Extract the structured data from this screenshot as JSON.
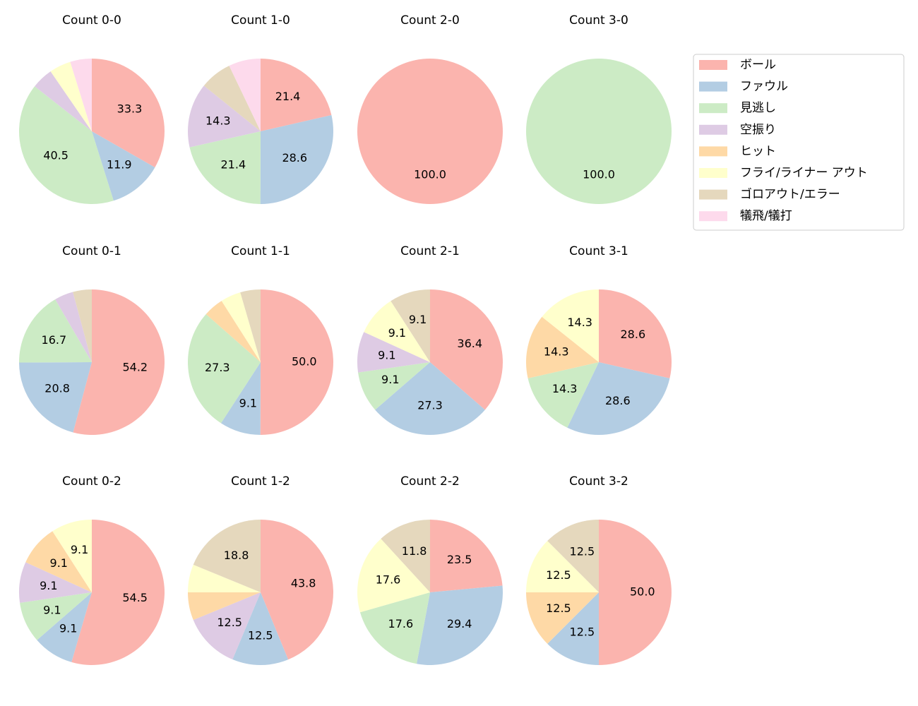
{
  "chart_data": [
    {
      "type": "pie",
      "title": "Count 0-0",
      "values": [
        33.3,
        11.9,
        40.5,
        4.8,
        null,
        4.8,
        null,
        4.8
      ],
      "value_labels": [
        "33.3",
        "11.9",
        "40.5",
        null,
        null,
        null,
        null,
        null
      ]
    },
    {
      "type": "pie",
      "title": "Count 1-0",
      "values": [
        21.4,
        28.6,
        21.4,
        14.3,
        null,
        null,
        7.1,
        7.1
      ],
      "value_labels": [
        "21.4",
        "28.6",
        "21.4",
        "14.3",
        null,
        null,
        null,
        null
      ]
    },
    {
      "type": "pie",
      "title": "Count 2-0",
      "values": [
        100.0,
        null,
        null,
        null,
        null,
        null,
        null,
        null
      ],
      "value_labels": [
        "100.0",
        null,
        null,
        null,
        null,
        null,
        null,
        null
      ]
    },
    {
      "type": "pie",
      "title": "Count 3-0",
      "values": [
        null,
        null,
        100.0,
        null,
        null,
        null,
        null,
        null
      ],
      "value_labels": [
        null,
        null,
        "100.0",
        null,
        null,
        null,
        null,
        null
      ]
    },
    {
      "type": "pie",
      "title": "Count 0-1",
      "values": [
        54.2,
        20.8,
        16.7,
        4.2,
        null,
        null,
        4.2,
        null
      ],
      "value_labels": [
        "54.2",
        "20.8",
        "16.7",
        null,
        null,
        null,
        null,
        null
      ]
    },
    {
      "type": "pie",
      "title": "Count 1-1",
      "values": [
        50.0,
        9.1,
        27.3,
        null,
        4.5,
        4.5,
        4.5,
        null
      ],
      "value_labels": [
        "50.0",
        "9.1",
        "27.3",
        null,
        null,
        null,
        null,
        null
      ]
    },
    {
      "type": "pie",
      "title": "Count 2-1",
      "values": [
        36.4,
        27.3,
        9.1,
        9.1,
        null,
        9.1,
        9.1,
        null
      ],
      "value_labels": [
        "36.4",
        "27.3",
        "9.1",
        "9.1",
        null,
        "9.1",
        "9.1",
        null
      ]
    },
    {
      "type": "pie",
      "title": "Count 3-1",
      "values": [
        28.6,
        28.6,
        14.3,
        null,
        14.3,
        14.3,
        null,
        null
      ],
      "value_labels": [
        "28.6",
        "28.6",
        "14.3",
        null,
        "14.3",
        "14.3",
        null,
        null
      ]
    },
    {
      "type": "pie",
      "title": "Count 0-2",
      "values": [
        54.5,
        9.1,
        9.1,
        9.1,
        9.1,
        9.1,
        null,
        null
      ],
      "value_labels": [
        "54.5",
        "9.1",
        "9.1",
        "9.1",
        "9.1",
        "9.1",
        null,
        null
      ]
    },
    {
      "type": "pie",
      "title": "Count 1-2",
      "values": [
        43.8,
        12.5,
        null,
        12.5,
        6.2,
        6.2,
        18.8,
        null
      ],
      "value_labels": [
        "43.8",
        "12.5",
        null,
        "12.5",
        null,
        null,
        "18.8",
        null
      ]
    },
    {
      "type": "pie",
      "title": "Count 2-2",
      "values": [
        23.5,
        29.4,
        17.6,
        null,
        null,
        17.6,
        11.8,
        null
      ],
      "value_labels": [
        "23.5",
        "29.4",
        "17.6",
        null,
        null,
        "17.6",
        "11.8",
        null
      ]
    },
    {
      "type": "pie",
      "title": "Count 3-2",
      "values": [
        50.0,
        12.5,
        null,
        null,
        12.5,
        12.5,
        12.5,
        null
      ],
      "value_labels": [
        "50.0",
        "12.5",
        null,
        null,
        "12.5",
        "12.5",
        "12.5",
        null
      ]
    }
  ],
  "legend": {
    "position": "upper right",
    "categories": [
      "ボール",
      "ファウル",
      "見逃し",
      "空振り",
      "ヒット",
      "フライ/ライナー アウト",
      "ゴロアウト/エラー",
      "犠飛/犠打"
    ],
    "colors": [
      "#fbb4ae",
      "#b3cde3",
      "#ccebc5",
      "#decbe4",
      "#fed9a6",
      "#ffffcc",
      "#e5d8bd",
      "#fddaec"
    ]
  }
}
